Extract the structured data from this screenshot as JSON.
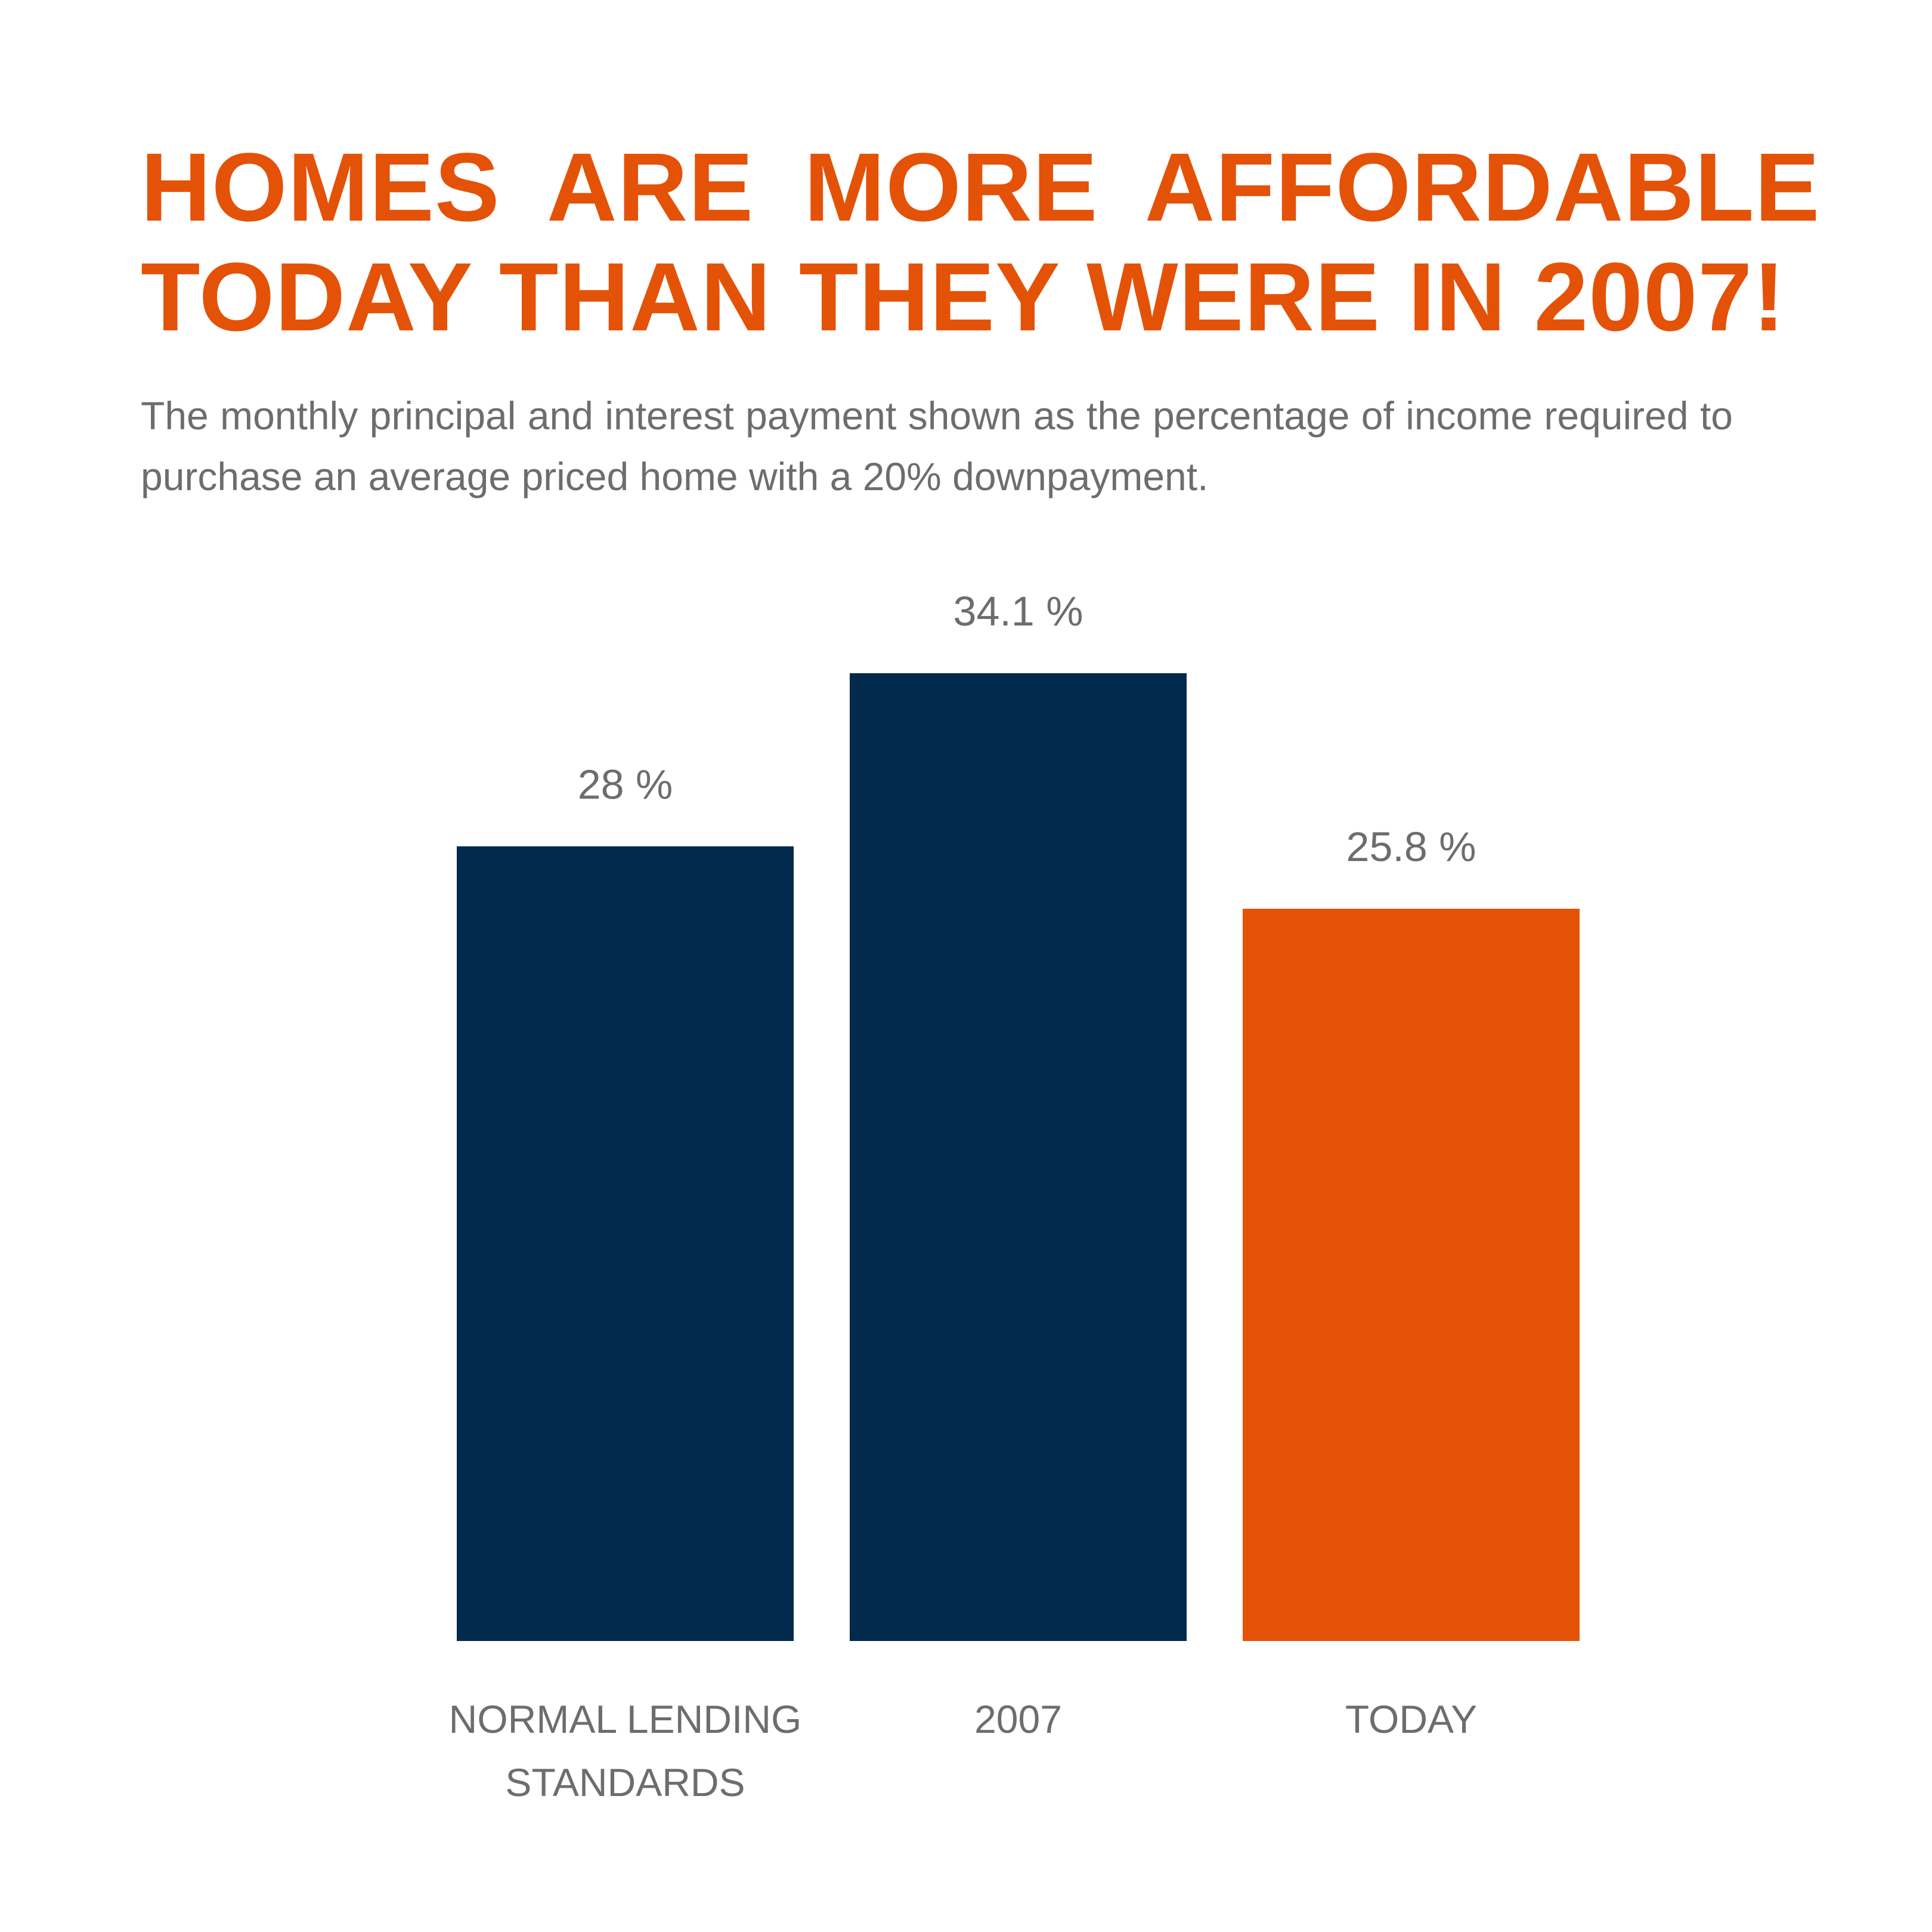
{
  "header": {
    "title_line1": "HOMES  ARE  MORE  AFFORDABLE",
    "title_line2": "TODAY THAN THEY WERE IN 2007!",
    "subtitle": "The monthly principal and interest payment shown as the percentage of income required to purchase an average priced home with a 20% downpayment."
  },
  "chart_data": {
    "type": "bar",
    "categories": [
      [
        "NORMAL LENDING",
        "STANDARDS"
      ],
      [
        "2007"
      ],
      [
        "TODAY"
      ]
    ],
    "values": [
      28,
      34.1,
      25.8
    ],
    "value_labels": [
      "28 %",
      "34.1 %",
      "25.8 %"
    ],
    "colors": [
      "#022a4c",
      "#022a4c",
      "#e45208"
    ],
    "ylim": [
      0,
      34.1
    ],
    "grid": false,
    "legend": "none"
  }
}
